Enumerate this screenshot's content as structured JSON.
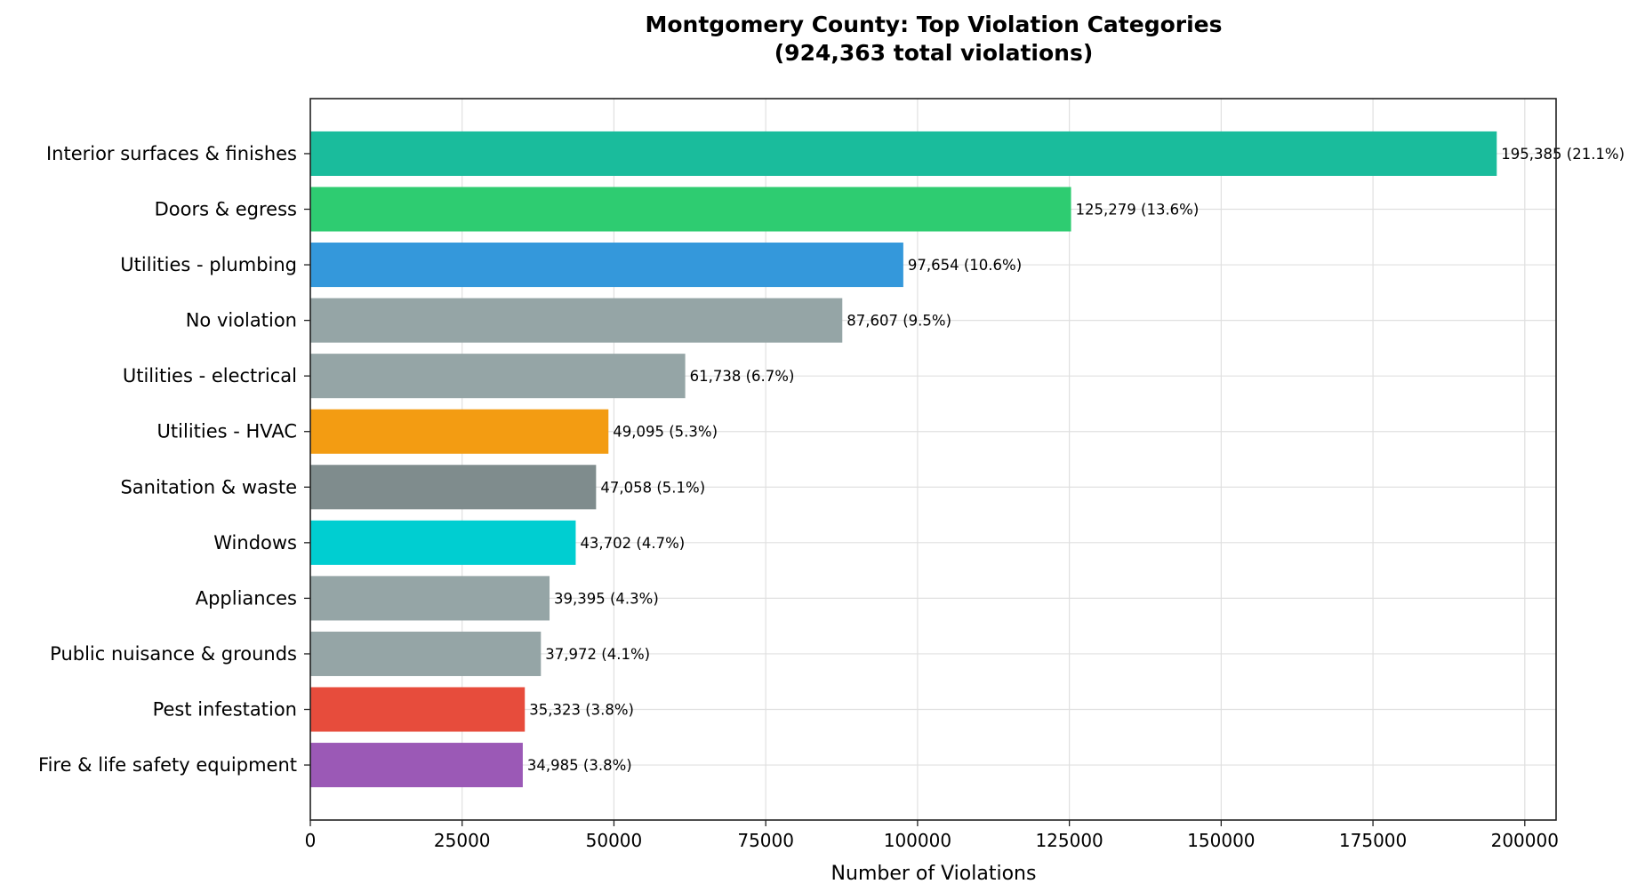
{
  "chart_data": {
    "type": "bar",
    "orientation": "horizontal",
    "title": "Montgomery County: Top Violation Categories",
    "subtitle": "(924,363 total violations)",
    "xlabel": "Number of Violations",
    "ylabel": "",
    "xlim": [
      0,
      205154
    ],
    "xticks": [
      0,
      25000,
      50000,
      75000,
      100000,
      125000,
      150000,
      175000,
      200000
    ],
    "xtick_labels": [
      "0",
      "25000",
      "50000",
      "75000",
      "100000",
      "125000",
      "150000",
      "175000",
      "200000"
    ],
    "grid": true,
    "categories": [
      "Interior surfaces & finishes",
      "Doors & egress",
      "Utilities - plumbing",
      "No violation",
      "Utilities - electrical",
      "Utilities - HVAC",
      "Sanitation & waste",
      "Windows",
      "Appliances",
      "Public nuisance & grounds",
      "Pest infestation",
      "Fire & life safety equipment"
    ],
    "values": [
      195385,
      125279,
      97654,
      87607,
      61738,
      49095,
      47058,
      43702,
      39395,
      37972,
      35323,
      34985
    ],
    "data_labels": [
      "195,385 (21.1%)",
      "125,279 (13.6%)",
      "97,654 (10.6%)",
      "87,607 (9.5%)",
      "61,738 (6.7%)",
      "49,095 (5.3%)",
      "47,058 (5.1%)",
      "43,702 (4.7%)",
      "39,395 (4.3%)",
      "37,972 (4.1%)",
      "35,323 (3.8%)",
      "34,985 (3.8%)"
    ],
    "colors": [
      "#1abc9c",
      "#2ecc71",
      "#3498db",
      "#95a5a6",
      "#95a5a6",
      "#f39c12",
      "#7f8c8d",
      "#00ced1",
      "#95a5a6",
      "#95a5a6",
      "#e74c3c",
      "#9b59b6"
    ]
  }
}
